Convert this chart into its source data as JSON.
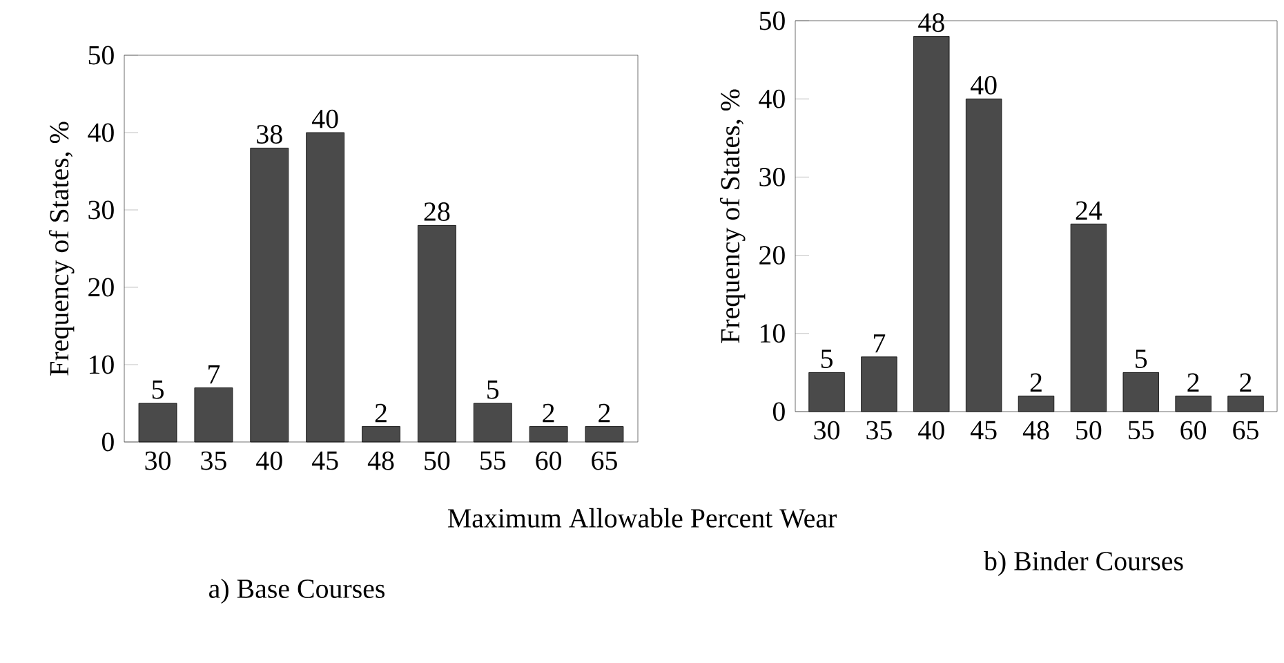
{
  "chart_data": [
    {
      "type": "bar",
      "title": "a) Base Courses",
      "xlabel": "Maximum Allowable Percent Wear",
      "ylabel": "Frequency of States, %",
      "categories": [
        "30",
        "35",
        "40",
        "45",
        "48",
        "50",
        "55",
        "60",
        "65"
      ],
      "values": [
        5,
        7,
        38,
        40,
        2,
        28,
        5,
        2,
        2
      ],
      "color": "#4a4a4a",
      "ylim": [
        0,
        50
      ],
      "yticks": [
        0,
        10,
        20,
        30,
        40,
        50
      ],
      "data_labels": true
    },
    {
      "type": "bar",
      "title": "b) Binder Courses",
      "ylabel": "Frequency of States, %",
      "categories": [
        "30",
        "35",
        "40",
        "45",
        "48",
        "50",
        "55",
        "60",
        "65"
      ],
      "values": [
        5,
        7,
        48,
        40,
        2,
        24,
        5,
        2,
        2
      ],
      "color": "#4a4a4a",
      "ylim": [
        0,
        50
      ],
      "yticks": [
        0,
        10,
        20,
        30,
        40,
        50
      ],
      "data_labels": true
    }
  ]
}
